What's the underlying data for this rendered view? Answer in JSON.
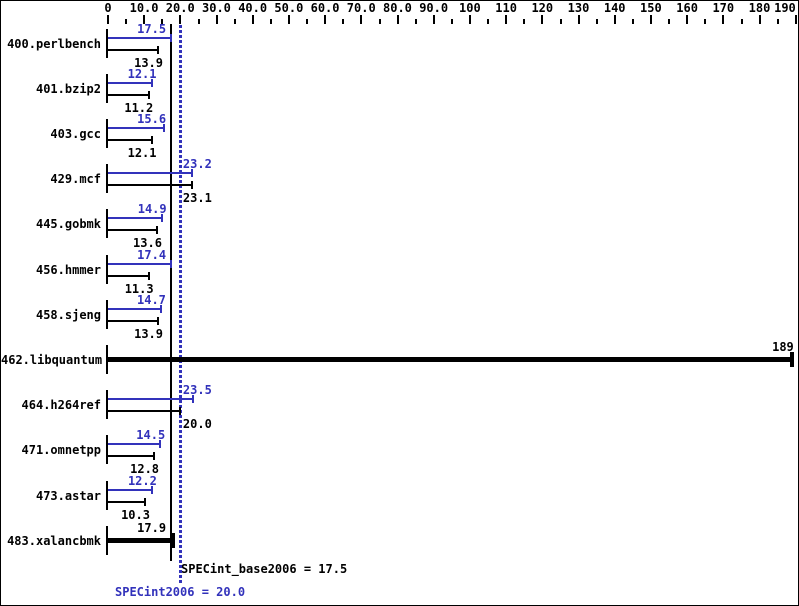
{
  "chart_data": {
    "type": "bar",
    "orientation": "horizontal",
    "title": "",
    "axis": {
      "position": "top",
      "min": 0,
      "max": 190,
      "major_tick_step": 10,
      "minor_tick_step": 5,
      "tick_labels": [
        "0",
        "10.0",
        "20.0",
        "30.0",
        "40.0",
        "50.0",
        "60.0",
        "70.0",
        "80.0",
        "90.0",
        "100",
        "110",
        "120",
        "130",
        "140",
        "150",
        "160",
        "170",
        "180",
        "190"
      ]
    },
    "series_meta": {
      "peak_name": "SPECint2006",
      "base_name": "SPECint_base2006"
    },
    "colors": {
      "peak": "#3232bb",
      "base": "#000000"
    },
    "benchmarks": [
      {
        "name": "400.perlbench",
        "peak": "17.5",
        "base": "13.9"
      },
      {
        "name": "401.bzip2",
        "peak": "12.1",
        "base": "11.2"
      },
      {
        "name": "403.gcc",
        "peak": "15.6",
        "base": "12.1"
      },
      {
        "name": "429.mcf",
        "peak": "23.2",
        "base": "23.1"
      },
      {
        "name": "445.gobmk",
        "peak": "14.9",
        "base": "13.6"
      },
      {
        "name": "456.hmmer",
        "peak": "17.4",
        "base": "11.3"
      },
      {
        "name": "458.sjeng",
        "peak": "14.7",
        "base": "13.9"
      },
      {
        "name": "462.libquantum",
        "base": "189"
      },
      {
        "name": "464.h264ref",
        "peak": "23.5",
        "base": "20.0"
      },
      {
        "name": "471.omnetpp",
        "peak": "14.5",
        "base": "12.8"
      },
      {
        "name": "473.astar",
        "peak": "12.2",
        "base": "10.3"
      },
      {
        "name": "483.xalancbmk",
        "base": "17.9"
      }
    ],
    "reference_lines": [
      {
        "text": "SPECint_base2006 = 17.5",
        "value": 17.5,
        "style": "solid",
        "color": "#000000"
      },
      {
        "text": "SPECint2006 = 20.0",
        "value": 20.0,
        "style": "dotted",
        "color": "#3232bb"
      }
    ]
  }
}
